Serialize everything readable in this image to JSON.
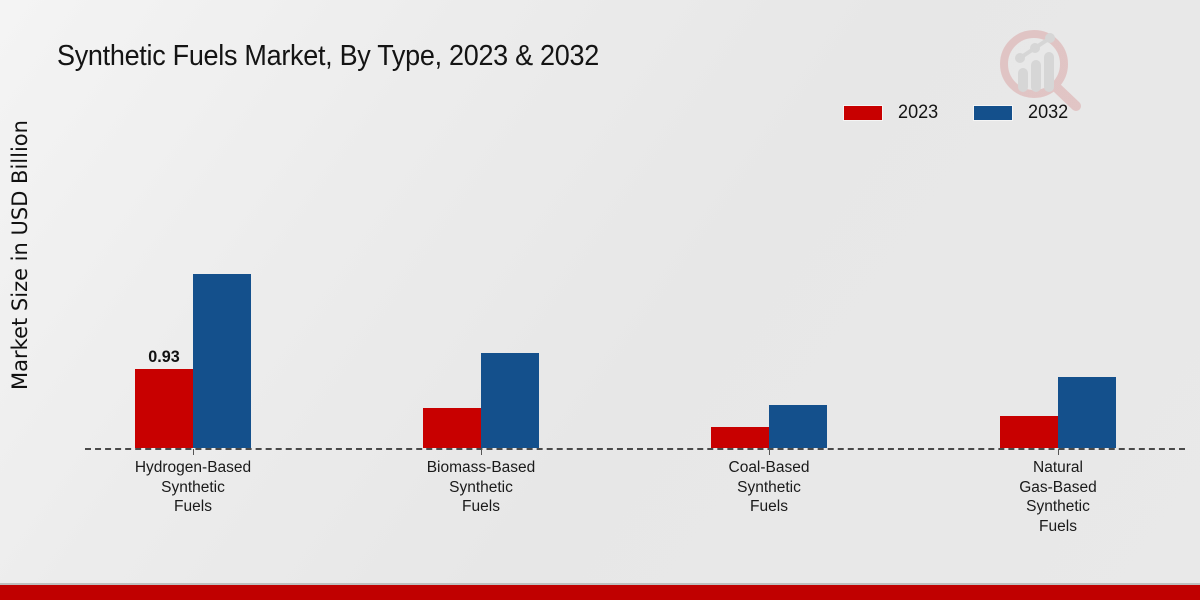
{
  "title": "Synthetic Fuels Market, By Type, 2023 & 2032",
  "y_axis_label": "Market Size in USD Billion",
  "legend": {
    "position": "top-right",
    "items": [
      {
        "label": "2023",
        "color": "#c80000"
      },
      {
        "label": "2032",
        "color": "#14508c"
      }
    ]
  },
  "chart_data": {
    "type": "bar",
    "title": "Synthetic Fuels Market, By Type, 2023 & 2032",
    "xlabel": "",
    "ylabel": "Market Size in USD Billion",
    "categories": [
      "Hydrogen-Based Synthetic Fuels",
      "Biomass-Based Synthetic Fuels",
      "Coal-Based Synthetic Fuels",
      "Natural Gas-Based Synthetic Fuels"
    ],
    "category_lines": [
      [
        "Hydrogen-Based",
        "Synthetic",
        "Fuels"
      ],
      [
        "Biomass-Based",
        "Synthetic",
        "Fuels"
      ],
      [
        "Coal-Based",
        "Synthetic",
        "Fuels"
      ],
      [
        "Natural",
        "Gas-Based",
        "Synthetic",
        "Fuels"
      ]
    ],
    "series": [
      {
        "name": "2023",
        "color": "#c80000",
        "values": [
          0.93,
          0.47,
          0.25,
          0.38
        ]
      },
      {
        "name": "2032",
        "color": "#14508c",
        "values": [
          2.05,
          1.12,
          0.5,
          0.84
        ]
      }
    ],
    "annotations": [
      {
        "series_index": 0,
        "category_index": 0,
        "text": "0.93"
      }
    ],
    "ylim": [
      0,
      2.4
    ],
    "grid": false,
    "axis_style": "dashed-baseline-only",
    "legend_position": "top-right"
  },
  "branding": {
    "logo_name": "market-research-magnifier-logo",
    "footer_bar_color": "#c00000"
  }
}
